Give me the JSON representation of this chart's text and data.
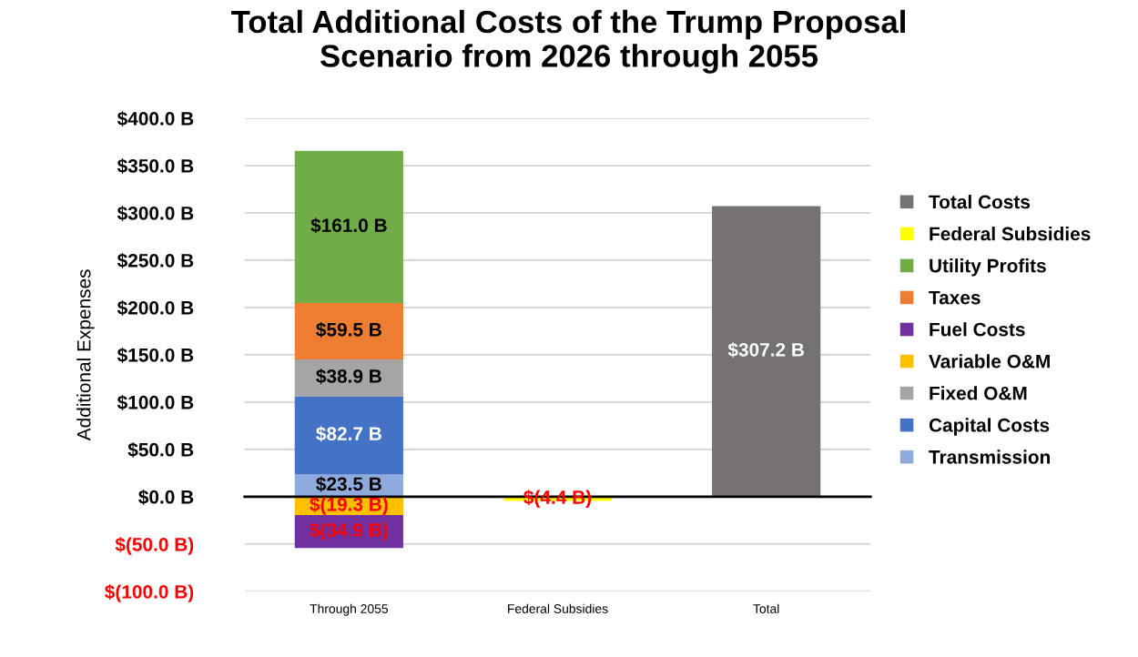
{
  "chart_data": {
    "type": "bar",
    "title": "Total Additional Costs of the Trump Proposal\nScenario from 2026 through 2055",
    "ylabel": "Additional Expenses",
    "categories": [
      "Through 2055",
      "Federal Subsidies",
      "Total"
    ],
    "stacked": true,
    "grid": "y",
    "legend": "right",
    "ylim": [
      -100,
      400
    ],
    "yticks": [
      {
        "value": -100,
        "label": "$(100.0 B)"
      },
      {
        "value": -50,
        "label": "$(50.0 B)"
      },
      {
        "value": 0,
        "label": "$0.0 B"
      },
      {
        "value": 50,
        "label": "$50.0 B"
      },
      {
        "value": 100,
        "label": "$100.0 B"
      },
      {
        "value": 150,
        "label": "$150.0 B"
      },
      {
        "value": 200,
        "label": "$200.0 B"
      },
      {
        "value": 250,
        "label": "$250.0 B"
      },
      {
        "value": 300,
        "label": "$300.0 B"
      },
      {
        "value": 350,
        "label": "$350.0 B"
      },
      {
        "value": 400,
        "label": "$400.0 B"
      }
    ],
    "series": [
      {
        "name": "Transmission",
        "color": "#8faadc",
        "values": [
          23.5,
          null,
          null
        ],
        "value_labels": [
          "$23.5 B",
          null,
          null
        ]
      },
      {
        "name": "Capital Costs",
        "color": "#4472c4",
        "values": [
          82.7,
          null,
          null
        ],
        "value_labels": [
          "$82.7 B",
          null,
          null
        ]
      },
      {
        "name": "Fixed O&M",
        "color": "#a5a5a5",
        "values": [
          38.9,
          null,
          null
        ],
        "value_labels": [
          "$38.9 B",
          null,
          null
        ]
      },
      {
        "name": "Variable O&M",
        "color": "#ffc000",
        "values": [
          -19.3,
          null,
          null
        ],
        "value_labels": [
          "$(19.3 B)",
          null,
          null
        ]
      },
      {
        "name": "Fuel Costs",
        "color": "#7030a0",
        "values": [
          -34.9,
          null,
          null
        ],
        "value_labels": [
          "$(34.9 B)",
          null,
          null
        ]
      },
      {
        "name": "Taxes",
        "color": "#ed7d31",
        "values": [
          59.5,
          null,
          null
        ],
        "value_labels": [
          "$59.5 B",
          null,
          null
        ]
      },
      {
        "name": "Utility Profits",
        "color": "#70ad47",
        "values": [
          161.0,
          null,
          null
        ],
        "value_labels": [
          "$161.0 B",
          null,
          null
        ]
      },
      {
        "name": "Federal Subsidies",
        "color": "#ffff00",
        "values": [
          null,
          -4.4,
          null
        ],
        "value_labels": [
          null,
          "$(4.4 B)",
          null
        ]
      },
      {
        "name": "Total Costs",
        "color": "#767171",
        "values": [
          null,
          null,
          307.2
        ],
        "value_labels": [
          null,
          null,
          "$307.2 B"
        ]
      }
    ]
  }
}
